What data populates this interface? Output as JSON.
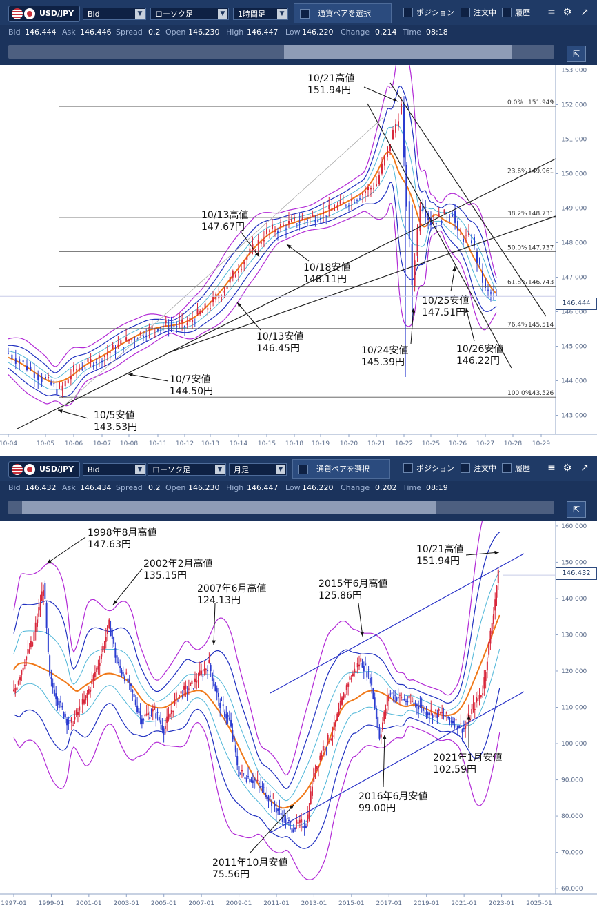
{
  "panels": [
    {
      "symbol": "USD/JPY",
      "price_type": "Bid",
      "chart_type": "ローソク足",
      "timeframe": "1時間足",
      "pair_select": "通貨ペアを選択",
      "checkboxes": [
        "ポジション",
        "注文中",
        "履歴"
      ],
      "info": {
        "bid_label": "Bid",
        "bid": "146.444",
        "ask_label": "Ask",
        "ask": "146.446",
        "spread_label": "Spread",
        "spread": "0.2",
        "open_label": "Open",
        "open": "146.230",
        "high_label": "High",
        "high": "146.447",
        "low_label": "Low",
        "low": "146.220",
        "change_label": "Change",
        "change": "0.214",
        "time_label": "Time",
        "time": "08:18"
      },
      "current_price": "146.444"
    },
    {
      "symbol": "USD/JPY",
      "price_type": "Bid",
      "chart_type": "ローソク足",
      "timeframe": "月足",
      "pair_select": "通貨ペアを選択",
      "checkboxes": [
        "ポジション",
        "注文中",
        "履歴"
      ],
      "info": {
        "bid_label": "Bid",
        "bid": "146.432",
        "ask_label": "Ask",
        "ask": "146.434",
        "spread_label": "Spread",
        "spread": "0.2",
        "open_label": "Open",
        "open": "146.230",
        "high_label": "High",
        "high": "146.447",
        "low_label": "Low",
        "low": "146.220",
        "change_label": "Change",
        "change": "0.202",
        "time_label": "Time",
        "time": "08:19"
      },
      "current_price": "146.432"
    }
  ],
  "icons": {
    "settings": "gear-icon",
    "popout": "popout-icon",
    "nav_toggle": "expand-icon"
  },
  "colors": {
    "toolbar": "#1f3a66",
    "up": "#d8283c",
    "down": "#2a3bd0",
    "ma_orange": "#f07818",
    "bb_inner": "#4fb6d8",
    "bb_mid": "#2030c0",
    "bb_outer": "#b22ad6"
  },
  "chart_data": [
    {
      "type": "candlestick",
      "y_axis_ticks": [
        143.0,
        144.0,
        145.0,
        146.0,
        147.0,
        148.0,
        149.0,
        150.0,
        151.0,
        152.0,
        153.0
      ],
      "ylim": [
        142.45,
        153.15
      ],
      "x_tick_labels": [
        "10-04",
        "10-05",
        "10-06",
        "10-07",
        "10-08",
        "10-11",
        "10-12",
        "10-13",
        "10-14",
        "10-15",
        "10-18",
        "10-19",
        "10-20",
        "10-21",
        "10-22",
        "10-25",
        "10-26",
        "10-27",
        "10-28",
        "10-29"
      ],
      "close_path": [
        [
          0,
          144.8
        ],
        [
          1,
          144.0
        ],
        [
          1.5,
          143.7
        ],
        [
          2,
          144.3
        ],
        [
          3,
          144.7
        ],
        [
          4,
          145.2
        ],
        [
          5,
          145.6
        ],
        [
          6,
          145.6
        ],
        [
          7,
          146.2
        ],
        [
          7.6,
          146.8
        ],
        [
          8,
          147.3
        ],
        [
          9,
          148.3
        ],
        [
          10,
          148.6
        ],
        [
          11,
          148.8
        ],
        [
          12,
          149.2
        ],
        [
          13,
          149.7
        ],
        [
          13.9,
          151.94
        ],
        [
          14,
          150.3
        ],
        [
          14.3,
          146.8
        ],
        [
          14.6,
          149.2
        ],
        [
          15,
          148.6
        ],
        [
          15.8,
          148.9
        ],
        [
          16,
          148.2
        ],
        [
          16.5,
          148.1
        ],
        [
          17,
          146.6
        ],
        [
          17.4,
          146.4
        ]
      ],
      "fibonacci": [
        {
          "label": "0.0%",
          "value": 151.949,
          "value_label": "151.949"
        },
        {
          "label": "23.6%",
          "value": 149.961,
          "value_label": "149.961"
        },
        {
          "label": "38.2%",
          "value": 148.731,
          "value_label": "148.731"
        },
        {
          "label": "50.0%",
          "value": 147.737,
          "value_label": "147.737"
        },
        {
          "label": "61.8%",
          "value": 146.743,
          "value_label": "146.743"
        },
        {
          "label": "76.4%",
          "value": 145.514,
          "value_label": "145.514"
        },
        {
          "label": "100.0%",
          "value": 143.526,
          "value_label": "143.526"
        }
      ],
      "annotations": [
        {
          "line1": "10/21高値",
          "line2": "151.94円"
        },
        {
          "line1": "10/13高値",
          "line2": "147.67円"
        },
        {
          "line1": "10/18安値",
          "line2": "148.11円"
        },
        {
          "line1": "10/13安値",
          "line2": "146.45円"
        },
        {
          "line1": "10/7安値",
          "line2": "144.50円"
        },
        {
          "line1": "10/5安値",
          "line2": "143.53円"
        },
        {
          "line1": "10/24安値",
          "line2": "145.39円"
        },
        {
          "line1": "10/25安値",
          "line2": "147.51円"
        },
        {
          "line1": "10/26安値",
          "line2": "146.22円"
        }
      ]
    },
    {
      "type": "candlestick",
      "y_axis_ticks": [
        60.0,
        70.0,
        80.0,
        90.0,
        100.0,
        110.0,
        120.0,
        130.0,
        140.0,
        150.0,
        160.0
      ],
      "ylim": [
        58.5,
        161.5
      ],
      "x_tick_labels": [
        "1997-01",
        "1999-01",
        "2001-01",
        "2003-01",
        "2005-01",
        "2007-01",
        "2009-01",
        "2011-01",
        "2013-01",
        "2015-01",
        "2017-01",
        "2019-01",
        "2021-01",
        "2023-01",
        "2025-01"
      ],
      "close_path": [
        [
          1997.0,
          114
        ],
        [
          1997.5,
          122
        ],
        [
          1998.0,
          128
        ],
        [
          1998.6,
          144
        ],
        [
          1998.9,
          118
        ],
        [
          1999.5,
          110
        ],
        [
          2000.0,
          105
        ],
        [
          2000.8,
          112
        ],
        [
          2001.5,
          122
        ],
        [
          2002.1,
          133
        ],
        [
          2002.5,
          122
        ],
        [
          2003.0,
          118
        ],
        [
          2003.8,
          107
        ],
        [
          2004.5,
          109
        ],
        [
          2005.0,
          104
        ],
        [
          2005.7,
          113
        ],
        [
          2006.5,
          116
        ],
        [
          2007.4,
          122
        ],
        [
          2007.9,
          112
        ],
        [
          2008.5,
          106
        ],
        [
          2009.0,
          92
        ],
        [
          2009.8,
          90
        ],
        [
          2010.5,
          86
        ],
        [
          2011.0,
          82
        ],
        [
          2011.8,
          77
        ],
        [
          2012.6,
          78
        ],
        [
          2013.0,
          92
        ],
        [
          2013.5,
          99
        ],
        [
          2014.0,
          103
        ],
        [
          2014.8,
          117
        ],
        [
          2015.5,
          123
        ],
        [
          2016.0,
          118
        ],
        [
          2016.5,
          102
        ],
        [
          2017.0,
          114
        ],
        [
          2017.8,
          112
        ],
        [
          2018.5,
          111
        ],
        [
          2019.0,
          109
        ],
        [
          2019.8,
          108
        ],
        [
          2020.5,
          106
        ],
        [
          2021.0,
          104
        ],
        [
          2021.5,
          110
        ],
        [
          2022.0,
          115
        ],
        [
          2022.4,
          130
        ],
        [
          2022.8,
          146
        ],
        [
          2022.9,
          148
        ]
      ],
      "annotations": [
        {
          "line1": "1998年8月高値",
          "line2": "147.63円"
        },
        {
          "line1": "2002年2月高値",
          "line2": "135.15円"
        },
        {
          "line1": "2007年6月高値",
          "line2": "124.13円"
        },
        {
          "line1": "2015年6月高値",
          "line2": "125.86円"
        },
        {
          "line1": "10/21高値",
          "line2": "151.94円"
        },
        {
          "line1": "2021年1月安値",
          "line2": "102.59円"
        },
        {
          "line1": "2016年6月安値",
          "line2": "99.00円"
        },
        {
          "line1": "2011年10月安値",
          "line2": "75.56円"
        }
      ]
    }
  ]
}
